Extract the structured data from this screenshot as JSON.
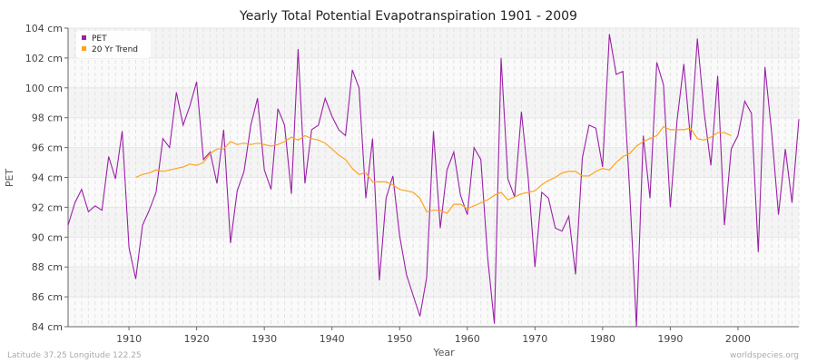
{
  "chart_data": {
    "type": "line",
    "title": "Yearly Total Potential Evapotranspiration 1901 - 2009",
    "xlabel": "Year",
    "ylabel": "PET",
    "ylim": [
      84,
      104
    ],
    "xlim": [
      1901,
      2009
    ],
    "yticks": [
      "84 cm",
      "86 cm",
      "88 cm",
      "90 cm",
      "92 cm",
      "94 cm",
      "96 cm",
      "98 cm",
      "100 cm",
      "102 cm",
      "104 cm"
    ],
    "xticks": [
      "1910",
      "1920",
      "1930",
      "1940",
      "1950",
      "1960",
      "1970",
      "1980",
      "1990",
      "2000"
    ],
    "grid": true,
    "legend_position": "top-left",
    "series": [
      {
        "name": "PET",
        "color": "#9b1fa8",
        "start_year": 1901,
        "values": [
          90.8,
          92.3,
          93.2,
          91.7,
          92.1,
          91.8,
          95.4,
          93.9,
          97.1,
          89.3,
          87.2,
          90.8,
          91.8,
          93.0,
          96.6,
          96.0,
          99.7,
          97.5,
          98.8,
          100.4,
          95.2,
          95.7,
          93.6,
          97.2,
          89.6,
          93.1,
          94.4,
          97.5,
          99.3,
          94.5,
          93.2,
          98.6,
          97.5,
          92.9,
          102.6,
          93.6,
          97.2,
          97.5,
          99.3,
          98.1,
          97.2,
          96.8,
          101.2,
          100.0,
          92.6,
          96.6,
          87.1,
          92.6,
          94.1,
          90.1,
          87.5,
          86.1,
          84.7,
          87.3,
          97.1,
          90.6,
          94.5,
          95.7,
          92.8,
          91.5,
          96.0,
          95.2,
          88.7,
          84.2,
          102.0,
          93.9,
          92.7,
          98.4,
          93.9,
          88.0,
          93.0,
          92.6,
          90.6,
          90.4,
          91.4,
          87.5,
          95.3,
          97.5,
          97.3,
          94.7,
          103.6,
          100.9,
          101.1,
          93.0,
          84.0,
          96.8,
          92.6,
          101.7,
          100.2,
          92.0,
          97.8,
          101.6,
          96.5,
          103.3,
          98.4,
          94.8,
          100.8,
          90.8,
          95.9,
          96.8,
          99.1,
          98.3,
          89.0,
          101.4,
          96.9,
          91.5,
          95.9,
          92.3,
          97.9
        ]
      },
      {
        "name": "20 Yr Trend",
        "color": "#ffa31a",
        "start_year": 1911,
        "values": [
          94.0,
          94.2,
          94.3,
          94.5,
          94.4,
          94.5,
          94.6,
          94.7,
          94.9,
          94.8,
          95.0,
          95.6,
          95.9,
          95.9,
          96.4,
          96.2,
          96.3,
          96.2,
          96.3,
          96.2,
          96.1,
          96.2,
          96.4,
          96.7,
          96.5,
          96.8,
          96.6,
          96.5,
          96.3,
          95.9,
          95.5,
          95.2,
          94.6,
          94.2,
          94.3,
          93.7,
          93.7,
          93.7,
          93.5,
          93.2,
          93.1,
          93.0,
          92.6,
          91.7,
          91.8,
          91.8,
          91.6,
          92.2,
          92.2,
          91.9,
          92.1,
          92.3,
          92.5,
          92.8,
          93.0,
          92.5,
          92.7,
          92.9,
          93.0,
          93.1,
          93.5,
          93.8,
          94.0,
          94.3,
          94.4,
          94.4,
          94.1,
          94.1,
          94.4,
          94.6,
          94.5,
          95.0,
          95.4,
          95.6,
          96.1,
          96.4,
          96.6,
          96.8,
          97.4,
          97.2,
          97.2,
          97.2,
          97.3,
          96.6,
          96.5,
          96.7,
          97.0,
          97.0,
          96.8
        ]
      }
    ]
  },
  "footer": {
    "left": "Latitude 37.25 Longitude 122.25",
    "right": "worldspecies.org"
  }
}
